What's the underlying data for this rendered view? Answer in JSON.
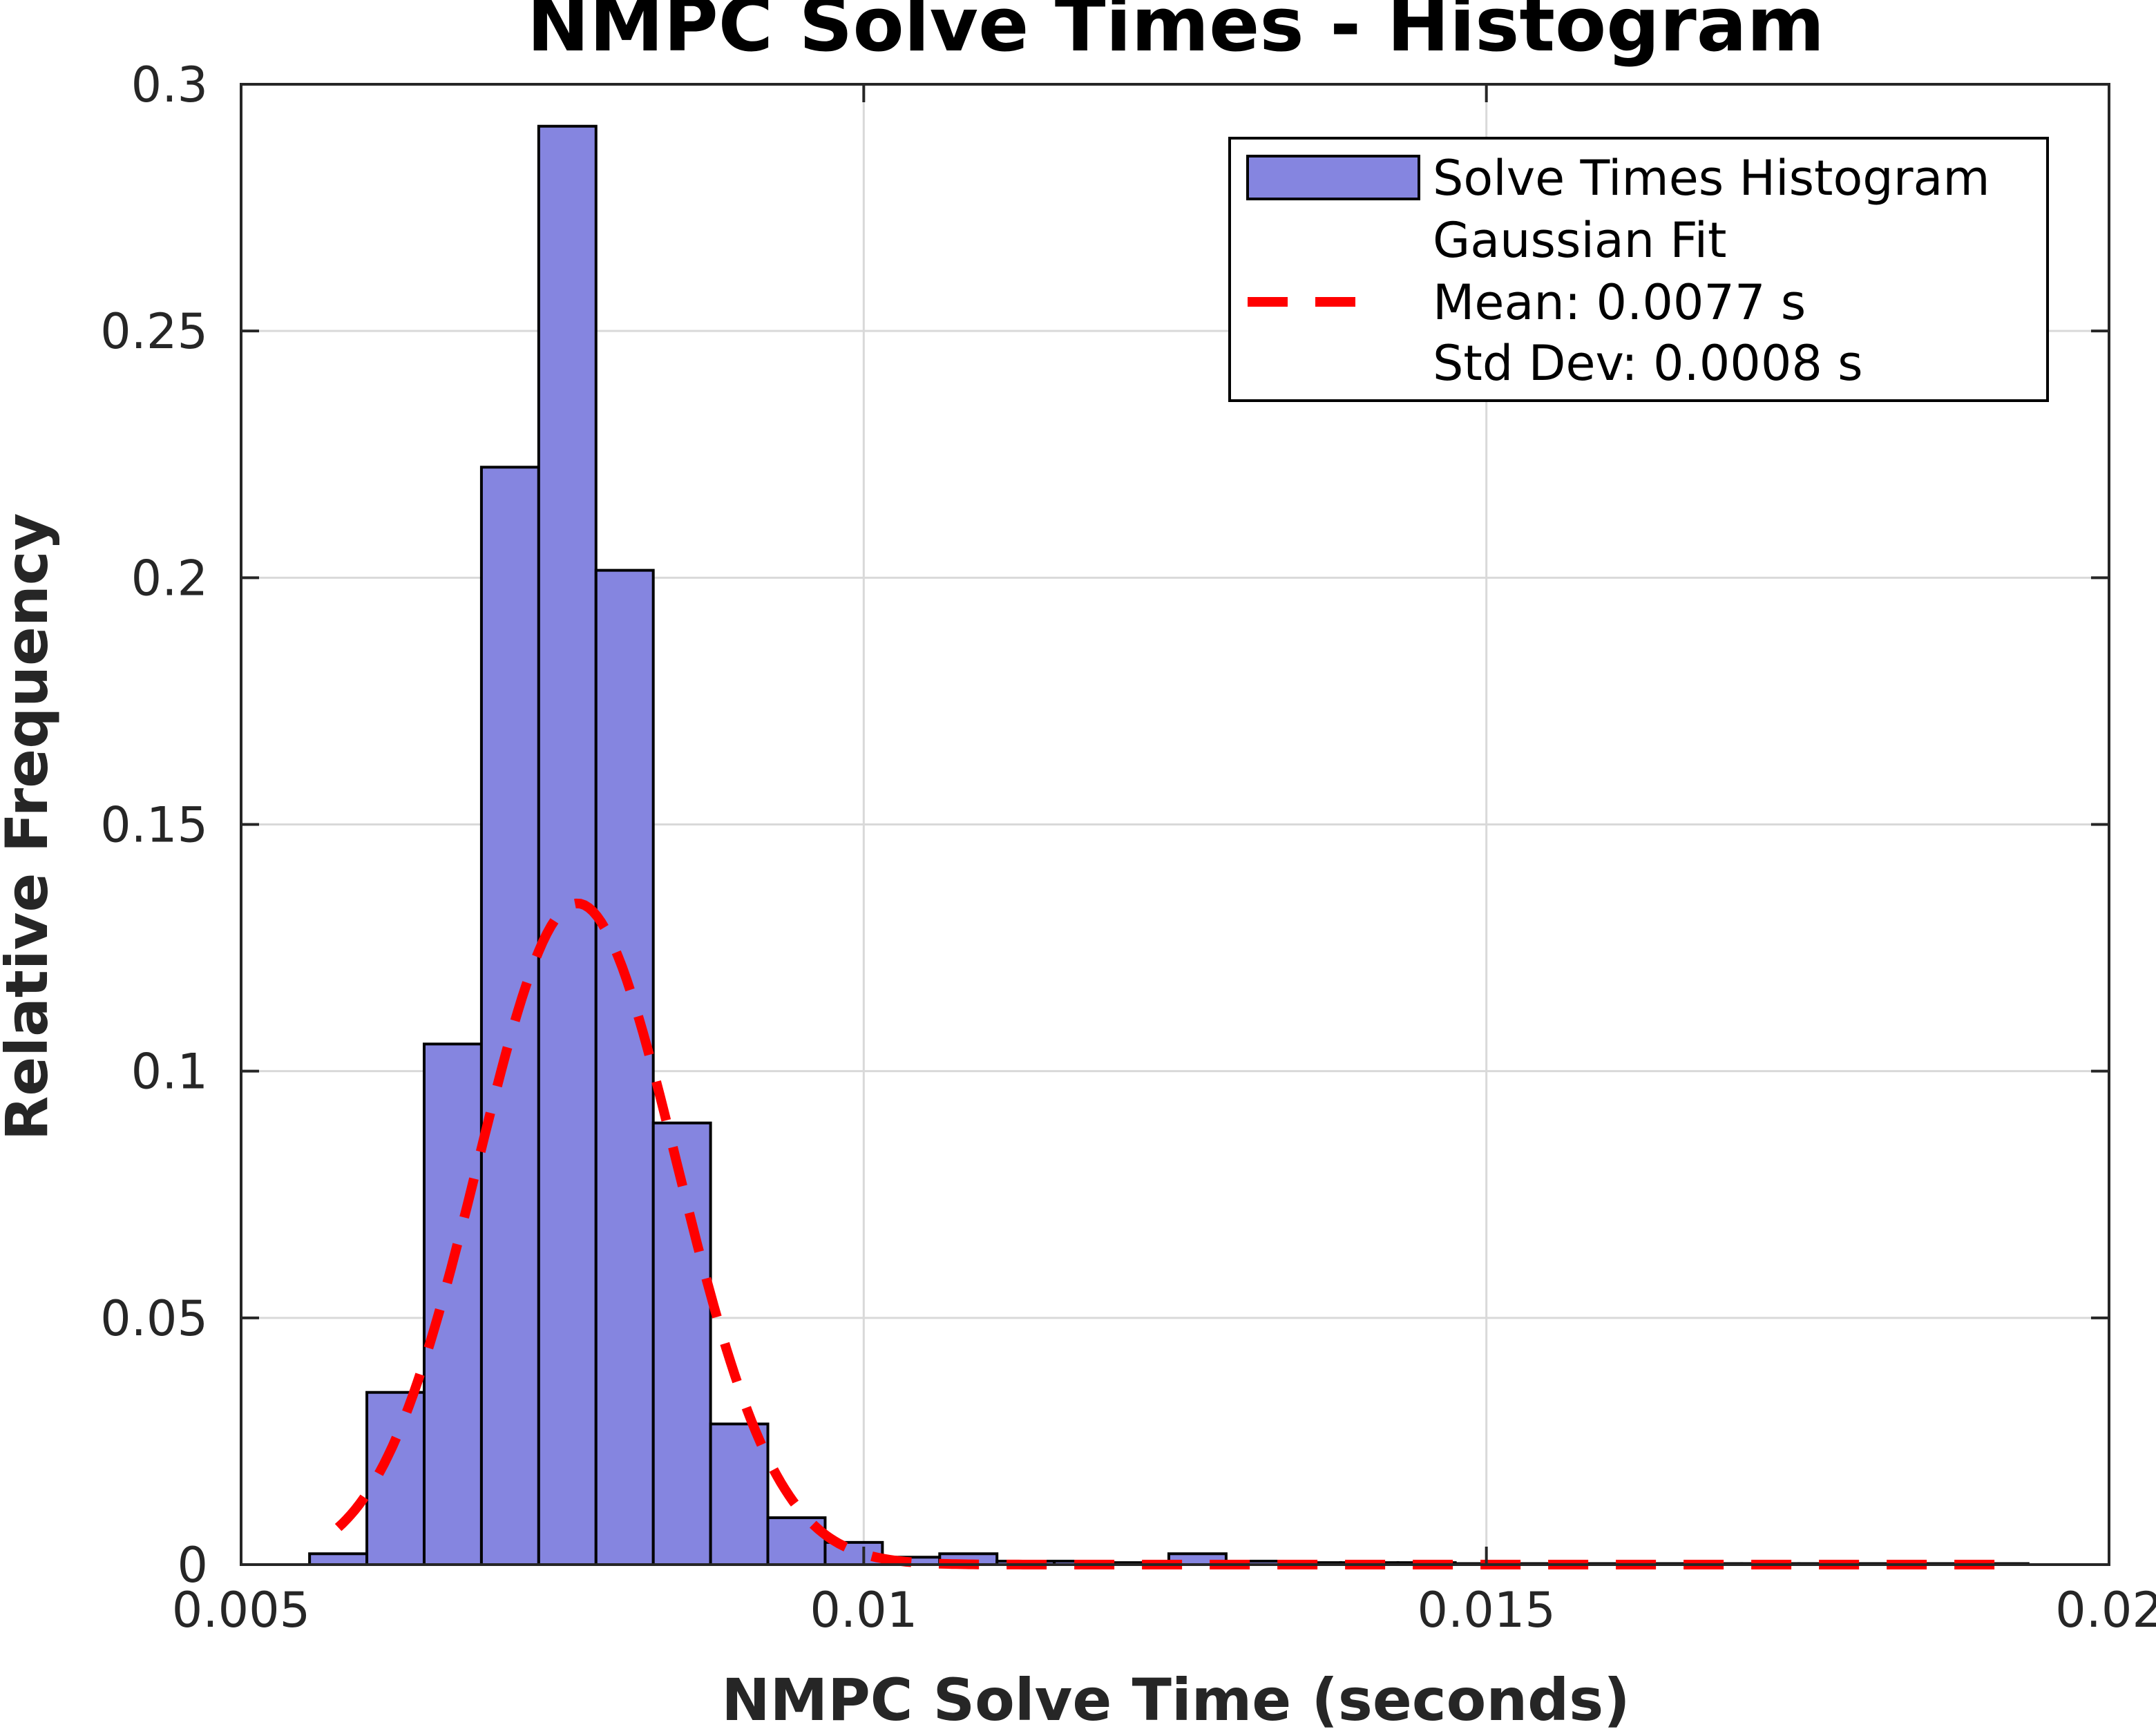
{
  "chart_data": {
    "type": "bar",
    "title": "NMPC Solve Times - Histogram",
    "xlabel": "NMPC Solve Time (seconds)",
    "ylabel": "Relative Frequency",
    "xlim": [
      0.005,
      0.02
    ],
    "ylim": [
      0,
      0.3
    ],
    "xticks": [
      0.005,
      0.01,
      0.015,
      0.02
    ],
    "xtick_labels": [
      "0.005",
      "0.01",
      "0.015",
      "0.02"
    ],
    "yticks": [
      0,
      0.05,
      0.1,
      0.15,
      0.2,
      0.25,
      0.3
    ],
    "ytick_labels": [
      "0",
      "0.05",
      "0.1",
      "0.15",
      "0.2",
      "0.25",
      "0.3"
    ],
    "grid": true,
    "legend_position": "top-right",
    "bin_width": 0.00046,
    "bins_left": [
      0.00555,
      0.00601,
      0.00647,
      0.00693,
      0.00739,
      0.00785,
      0.00831,
      0.00877,
      0.00923,
      0.00969,
      0.01015,
      0.01061,
      0.01107,
      0.01153,
      0.01199,
      0.01245,
      0.01291,
      0.01337,
      0.01383,
      0.01429,
      0.01475,
      0.01521,
      0.01567,
      0.01613,
      0.01659,
      0.01705,
      0.01751,
      0.01797,
      0.01843,
      0.01889
    ],
    "values": [
      0.0022,
      0.0349,
      0.1055,
      0.2224,
      0.2915,
      0.2015,
      0.0895,
      0.0285,
      0.0095,
      0.0045,
      0.0015,
      0.0022,
      0.0007,
      0.0007,
      0.0004,
      0.0022,
      0.0007,
      0.0004,
      0.0004,
      0.0004,
      0.0002,
      0.0002,
      0.0002,
      0.0002,
      0.0002,
      0.0002,
      0.0002,
      0.0002,
      0.0002,
      0.0002
    ],
    "series": [
      {
        "name": "Solve Times Histogram",
        "color": "#8585e0",
        "edge_color": "#000000"
      },
      {
        "name": "Gaussian Fit",
        "color": "#ff0000",
        "style": "dashed",
        "mean": 0.0077,
        "std": 0.0008
      }
    ],
    "gaussian_fit": {
      "x_range": [
        0.00578,
        0.01919
      ],
      "peak": 0.134
    },
    "legend": {
      "entries": [
        "Solve Times Histogram",
        "Gaussian Fit",
        "Mean: 0.0077 s",
        "Std Dev: 0.0008 s"
      ]
    },
    "colors": {
      "bar_fill": "#8585e0",
      "bar_edge": "#000000",
      "fit_line": "#ff0000",
      "grid": "#d9d9d9",
      "axis": "#262626"
    }
  }
}
